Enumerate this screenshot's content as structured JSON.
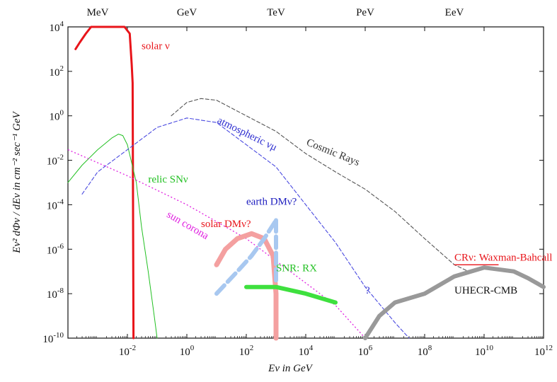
{
  "chart_data": {
    "type": "line",
    "x_scale": "log",
    "y_scale": "log",
    "xlim": [
      0.0001,
      1000000000000
    ],
    "ylim": [
      1e-10,
      10000
    ],
    "xlabel": "Eν in GeV",
    "ylabel": "Eν² dΦν / dEν in cm⁻² sec⁻¹ GeV",
    "x_ticks": [
      {
        "value": 0.01,
        "base": "10",
        "exp": "-2"
      },
      {
        "value": 1,
        "base": "10",
        "exp": "0"
      },
      {
        "value": 100,
        "base": "10",
        "exp": "2"
      },
      {
        "value": 10000,
        "base": "10",
        "exp": "4"
      },
      {
        "value": 1000000,
        "base": "10",
        "exp": "6"
      },
      {
        "value": 100000000,
        "base": "10",
        "exp": "8"
      },
      {
        "value": 10000000000,
        "base": "10",
        "exp": "10"
      },
      {
        "value": 1000000000000,
        "base": "10",
        "exp": "12"
      }
    ],
    "y_ticks": [
      {
        "value": 10000,
        "base": "10",
        "exp": "4"
      },
      {
        "value": 100,
        "base": "10",
        "exp": "2"
      },
      {
        "value": 1,
        "base": "10",
        "exp": "0"
      },
      {
        "value": 0.01,
        "base": "10",
        "exp": "-2"
      },
      {
        "value": 0.0001,
        "base": "10",
        "exp": "-4"
      },
      {
        "value": 1e-06,
        "base": "10",
        "exp": "-6"
      },
      {
        "value": 1e-08,
        "base": "10",
        "exp": "-8"
      },
      {
        "value": 1e-10,
        "base": "10",
        "exp": "-10"
      }
    ],
    "top_ticks": [
      {
        "value": 0.001,
        "label": "MeV"
      },
      {
        "value": 1,
        "label": "GeV"
      },
      {
        "value": 1000,
        "label": "TeV"
      },
      {
        "value": 1000000,
        "label": "PeV"
      },
      {
        "value": 1000000000,
        "label": "EeV"
      }
    ],
    "series": [
      {
        "name": "solar ν",
        "color": "#e8141a",
        "style": "solid",
        "width": 3,
        "points": [
          [
            0.00018,
            1000
          ],
          [
            0.00025,
            2000
          ],
          [
            0.0004,
            5000
          ],
          [
            0.0006,
            10000
          ],
          [
            0.0008,
            15000
          ],
          [
            0.002,
            15000
          ],
          [
            0.003,
            10000
          ],
          [
            0.008,
            10000
          ],
          [
            0.012,
            5000
          ],
          [
            0.014,
            200
          ],
          [
            0.015,
            30
          ],
          [
            0.016,
            1e-10
          ]
        ]
      },
      {
        "name": "relic SNν",
        "color": "#22c022",
        "style": "solid",
        "width": 1,
        "points": [
          [
            0.0001,
            0.001
          ],
          [
            0.0003,
            0.006
          ],
          [
            0.001,
            0.03
          ],
          [
            0.003,
            0.1
          ],
          [
            0.005,
            0.15
          ],
          [
            0.007,
            0.13
          ],
          [
            0.01,
            0.05
          ],
          [
            0.02,
            0.001
          ],
          [
            0.03,
            1e-05
          ],
          [
            0.05,
            1e-07
          ],
          [
            0.08,
            1e-09
          ],
          [
            0.1,
            1e-10
          ]
        ]
      },
      {
        "name": "sun corona",
        "color": "#e020e0",
        "style": "dotted",
        "width": 1.3,
        "points": [
          [
            0.0001,
            0.03
          ],
          [
            0.01,
            0.002
          ],
          [
            1,
            0.0001
          ],
          [
            100,
            3e-06
          ],
          [
            10000,
            3e-08
          ],
          [
            100000,
            3e-09
          ],
          [
            1000000,
            1e-10
          ]
        ]
      },
      {
        "name": "atmospheric νμ",
        "color": "#4a4ae0",
        "style": "dashed",
        "width": 1.1,
        "points": [
          [
            0.0003,
            0.0003
          ],
          [
            0.001,
            0.003
          ],
          [
            0.01,
            0.03
          ],
          [
            0.1,
            0.3
          ],
          [
            1,
            0.8
          ],
          [
            10,
            0.5
          ],
          [
            100,
            0.05
          ],
          [
            1000,
            0.005
          ],
          [
            10000,
            0.0001
          ],
          [
            100000,
            2e-06
          ],
          [
            1000000,
            2e-08
          ],
          [
            10000000,
            5e-10
          ],
          [
            30000000,
            1e-10
          ]
        ]
      },
      {
        "name": "Cosmic Rays",
        "color": "#555555",
        "style": "dashed",
        "width": 1.1,
        "points": [
          [
            0.3,
            1
          ],
          [
            1,
            4
          ],
          [
            3,
            6
          ],
          [
            10,
            5
          ],
          [
            100,
            1
          ],
          [
            1000,
            0.2
          ],
          [
            10000,
            0.02
          ],
          [
            100000,
            0.003
          ],
          [
            1000000,
            0.0005
          ],
          [
            10000000,
            5e-05
          ],
          [
            100000000,
            3e-06
          ],
          [
            1000000000,
            2e-07
          ],
          [
            3000000000,
            1e-07
          ]
        ]
      },
      {
        "name": "CRν: Waxman-Bahcall",
        "color": "#e8141a",
        "style": "solid",
        "width": 1.3,
        "points": [
          [
            1000000000,
            2e-07
          ],
          [
            30000000000,
            2e-07
          ]
        ]
      },
      {
        "name": "solar DMν?",
        "color": "#f4a0a0",
        "style": "solid",
        "width": 7,
        "points": [
          [
            10,
            2e-07
          ],
          [
            20,
            1e-06
          ],
          [
            50,
            3e-06
          ],
          [
            150,
            5e-06
          ],
          [
            400,
            3e-06
          ],
          [
            800,
            5e-07
          ],
          [
            1000,
            1e-08
          ],
          [
            1000,
            1e-10
          ]
        ]
      },
      {
        "name": "earth DMν?",
        "color": "#a8c8f0",
        "style": "dashed",
        "width": 6,
        "points": [
          [
            10,
            1e-08
          ],
          [
            50,
            1e-07
          ],
          [
            150,
            5e-07
          ],
          [
            400,
            3e-06
          ],
          [
            1000,
            2e-05
          ]
        ]
      },
      {
        "name": "earth DMν? (vertical)",
        "color": "#a8c8f0",
        "style": "dashed",
        "width": 6,
        "points": [
          [
            1000,
            2e-05
          ],
          [
            1000,
            3e-08
          ]
        ]
      },
      {
        "name": "SNR: RX",
        "color": "#3ee03e",
        "style": "solid",
        "width": 6,
        "points": [
          [
            100,
            2e-08
          ],
          [
            1000,
            2e-08
          ],
          [
            10000,
            1e-08
          ],
          [
            100000,
            4e-09
          ]
        ]
      },
      {
        "name": "UHECR-CMB",
        "color": "#999999",
        "style": "solid",
        "width": 6,
        "points": [
          [
            1000000,
            1e-10
          ],
          [
            3000000,
            1e-09
          ],
          [
            10000000,
            4e-09
          ],
          [
            100000000,
            1e-08
          ],
          [
            1000000000,
            6e-08
          ],
          [
            10000000000,
            1.5e-07
          ],
          [
            100000000000,
            1e-07
          ],
          [
            300000000000,
            5e-08
          ],
          [
            1000000000000,
            2e-08
          ]
        ]
      }
    ],
    "annotations": [
      {
        "text": "solar ν",
        "color": "#e8141a",
        "x": 0.03,
        "y": 1000
      },
      {
        "text": "relic SNν",
        "color": "#22c022",
        "x": 0.05,
        "y": 0.001
      },
      {
        "text": "sun corona",
        "color": "#e020e0",
        "x": 0.2,
        "y": 3e-05
      },
      {
        "text": "atmospheric νμ",
        "color": "#3030d0",
        "x": 10,
        "y": 0.5
      },
      {
        "text": "Cosmic Rays",
        "color": "#333333",
        "x": 10000,
        "y": 0.05
      },
      {
        "text": "earth DMν?",
        "color": "#2020c0",
        "x": 100,
        "y": 0.0001
      },
      {
        "text": "solar DMν?",
        "color": "#e8141a",
        "x": 3,
        "y": 1e-05
      },
      {
        "text": "SNR: RX",
        "color": "#22c022",
        "x": 1000,
        "y": 1e-07
      },
      {
        "text": "?",
        "color": "#3030d0",
        "x": 1000000,
        "y": 1e-08
      },
      {
        "text": "CRν: Waxman-Bahcall",
        "color": "#e8141a",
        "x": 1000000000,
        "y": 3e-07
      },
      {
        "text": "UHECR-CMB",
        "color": "#111111",
        "x": 1000000000,
        "y": 1e-08
      }
    ]
  }
}
